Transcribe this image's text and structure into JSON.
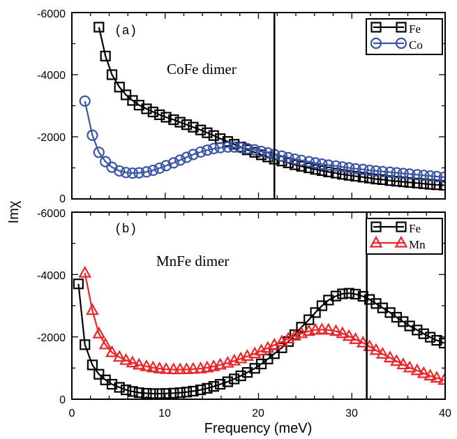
{
  "chart_data": [
    {
      "type": "line",
      "panel_label": "(a)",
      "title": "CoFe dimer",
      "xlim": [
        0,
        40
      ],
      "ylim": [
        0,
        -6000
      ],
      "y_ticks": [
        "-6000",
        "-4000",
        "-2000",
        "0"
      ],
      "x_ticks": [
        "0",
        "10",
        "20",
        "30",
        "40"
      ],
      "vline_x": 21.7,
      "legend_position": "top-right",
      "series": [
        {
          "name": "Fe",
          "color": "#000000",
          "marker": "square",
          "x": [
            2.9,
            3.6,
            4.3,
            5.1,
            5.8,
            6.5,
            7.2,
            8.0,
            8.7,
            9.4,
            10.1,
            10.9,
            11.6,
            12.3,
            13.0,
            13.8,
            14.5,
            15.2,
            15.9,
            16.7,
            17.4,
            18.1,
            18.8,
            19.6,
            20.3,
            21.0,
            21.7,
            22.5,
            23.2,
            23.9,
            24.6,
            25.4,
            26.1,
            26.8,
            27.5,
            28.3,
            29.0,
            29.7,
            30.4,
            31.2,
            31.9,
            32.6,
            33.3,
            34.1,
            34.8,
            35.5,
            36.2,
            37.0,
            37.7,
            38.4,
            39.1,
            39.9
          ],
          "y": [
            -5530,
            -4600,
            -4000,
            -3600,
            -3350,
            -3170,
            -3020,
            -2900,
            -2800,
            -2710,
            -2630,
            -2550,
            -2470,
            -2390,
            -2310,
            -2220,
            -2130,
            -2040,
            -1940,
            -1850,
            -1760,
            -1670,
            -1580,
            -1500,
            -1420,
            -1350,
            -1280,
            -1220,
            -1160,
            -1100,
            -1050,
            -1000,
            -950,
            -910,
            -870,
            -830,
            -790,
            -760,
            -730,
            -700,
            -670,
            -640,
            -620,
            -590,
            -570,
            -550,
            -530,
            -510,
            -490,
            -470,
            -455,
            -440
          ]
        },
        {
          "name": "Co",
          "color": "#3a55a5",
          "marker": "circle",
          "x": [
            1.4,
            2.2,
            2.9,
            3.6,
            4.3,
            5.1,
            5.8,
            6.5,
            7.2,
            8.0,
            8.7,
            9.4,
            10.1,
            10.9,
            11.6,
            12.3,
            13.0,
            13.8,
            14.5,
            15.2,
            15.9,
            16.7,
            17.4,
            18.1,
            18.8,
            19.6,
            20.3,
            21.0,
            21.7,
            22.5,
            23.2,
            23.9,
            24.6,
            25.4,
            26.1,
            26.8,
            27.5,
            28.3,
            29.0,
            29.7,
            30.4,
            31.2,
            31.9,
            32.6,
            33.3,
            34.1,
            34.8,
            35.5,
            36.2,
            37.0,
            37.7,
            38.4,
            39.1,
            39.9
          ],
          "y": [
            -3150,
            -2050,
            -1500,
            -1200,
            -1020,
            -900,
            -850,
            -830,
            -840,
            -870,
            -920,
            -990,
            -1070,
            -1160,
            -1250,
            -1340,
            -1430,
            -1510,
            -1570,
            -1620,
            -1650,
            -1670,
            -1670,
            -1650,
            -1620,
            -1580,
            -1530,
            -1480,
            -1430,
            -1380,
            -1330,
            -1280,
            -1240,
            -1200,
            -1160,
            -1120,
            -1090,
            -1060,
            -1030,
            -1000,
            -970,
            -950,
            -920,
            -900,
            -880,
            -860,
            -840,
            -820,
            -800,
            -780,
            -760,
            -740,
            -720,
            -700
          ]
        }
      ]
    },
    {
      "type": "line",
      "panel_label": "(b)",
      "title": "MnFe dimer",
      "xlim": [
        0,
        40
      ],
      "ylim": [
        0,
        -6000
      ],
      "y_ticks": [
        "-6000",
        "-4000",
        "-2000",
        "0"
      ],
      "x_ticks": [
        "0",
        "10",
        "20",
        "30",
        "40"
      ],
      "xlabel": "Frequency (meV)",
      "vline_x": 31.6,
      "legend_position": "top-right",
      "series": [
        {
          "name": "Fe",
          "color": "#000000",
          "marker": "square",
          "x": [
            0.7,
            1.4,
            2.2,
            2.9,
            3.6,
            4.3,
            5.1,
            5.8,
            6.5,
            7.2,
            8.0,
            8.7,
            9.4,
            10.1,
            10.9,
            11.6,
            12.3,
            13.0,
            13.8,
            14.5,
            15.2,
            15.9,
            16.7,
            17.4,
            18.1,
            18.8,
            19.6,
            20.3,
            21.0,
            21.7,
            22.5,
            23.2,
            23.9,
            24.6,
            25.4,
            26.1,
            26.8,
            27.5,
            28.3,
            29.0,
            29.7,
            30.4,
            31.2,
            31.9,
            32.6,
            33.3,
            34.1,
            34.8,
            35.5,
            36.2,
            37.0,
            37.7,
            38.4,
            39.1,
            39.9
          ],
          "y": [
            -3700,
            -1750,
            -1100,
            -800,
            -620,
            -480,
            -380,
            -300,
            -250,
            -210,
            -190,
            -180,
            -180,
            -185,
            -195,
            -210,
            -230,
            -260,
            -300,
            -350,
            -410,
            -480,
            -560,
            -650,
            -750,
            -860,
            -990,
            -1130,
            -1290,
            -1460,
            -1650,
            -1850,
            -2070,
            -2310,
            -2550,
            -2780,
            -3000,
            -3180,
            -3310,
            -3380,
            -3400,
            -3370,
            -3300,
            -3200,
            -3070,
            -2930,
            -2780,
            -2630,
            -2490,
            -2350,
            -2220,
            -2100,
            -1990,
            -1890,
            -1800
          ]
        },
        {
          "name": "Mn",
          "color": "#e8262a",
          "marker": "triangle",
          "x": [
            1.4,
            2.2,
            2.9,
            3.6,
            4.3,
            5.1,
            5.8,
            6.5,
            7.2,
            8.0,
            8.7,
            9.4,
            10.1,
            10.9,
            11.6,
            12.3,
            13.0,
            13.8,
            14.5,
            15.2,
            15.9,
            16.7,
            17.4,
            18.1,
            18.8,
            19.6,
            20.3,
            21.0,
            21.7,
            22.5,
            23.2,
            23.9,
            24.6,
            25.4,
            26.1,
            26.8,
            27.5,
            28.3,
            29.0,
            29.7,
            30.4,
            31.2,
            31.9,
            32.6,
            33.3,
            34.1,
            34.8,
            35.5,
            36.2,
            37.0,
            37.7,
            38.4,
            39.1,
            39.9
          ],
          "y": [
            -4050,
            -2850,
            -2100,
            -1750,
            -1500,
            -1350,
            -1250,
            -1170,
            -1100,
            -1050,
            -1010,
            -980,
            -960,
            -950,
            -950,
            -955,
            -965,
            -980,
            -1010,
            -1050,
            -1100,
            -1160,
            -1230,
            -1300,
            -1380,
            -1460,
            -1550,
            -1640,
            -1740,
            -1840,
            -1940,
            -2030,
            -2110,
            -2180,
            -2220,
            -2230,
            -2220,
            -2180,
            -2110,
            -2020,
            -1920,
            -1810,
            -1690,
            -1570,
            -1450,
            -1330,
            -1220,
            -1110,
            -1010,
            -920,
            -830,
            -750,
            -680,
            -610
          ]
        }
      ]
    }
  ],
  "shared": {
    "ylabel": "Imχ"
  }
}
